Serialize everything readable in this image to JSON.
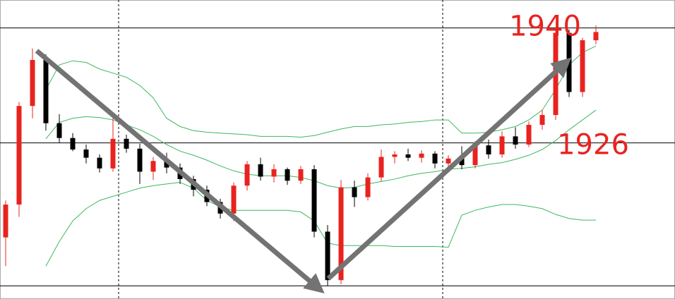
{
  "chart_data": {
    "type": "candlestick",
    "ylim": [
      1907,
      1943.4
    ],
    "up_color": "#e8231f",
    "down_color": "#000000",
    "band_color": "#3cb860",
    "open": [
      1914.5,
      1918.5,
      1930.5,
      1936.1,
      1928.4,
      1926.6,
      1925.2,
      1924.2,
      1922.9,
      1926.5,
      1925.3,
      1922.5,
      1923.8,
      1923,
      1921.6,
      1920.3,
      1918.8,
      1917.4,
      1920.8,
      1923.4,
      1921.9,
      1922.8,
      1921.4,
      1922.8,
      1915.2,
      1909.3,
      1920.6,
      1919.4,
      1921.8,
      1924.3,
      1924.6,
      1924.2,
      1924.7,
      1923.5,
      1924.1,
      1923.3,
      1925.7,
      1924.6,
      1926.8,
      1925.8,
      1928.2,
      1929.4,
      1939.4,
      1932.2,
      1938.5
    ],
    "high": [
      1919,
      1931,
      1937.5,
      1936.8,
      1929.5,
      1927.2,
      1925.8,
      1924.6,
      1929,
      1927,
      1925.9,
      1924.3,
      1924.8,
      1923.5,
      1922,
      1920.8,
      1919.2,
      1921.2,
      1923.8,
      1924.2,
      1923.4,
      1923,
      1923.2,
      1923.3,
      1916,
      1921.5,
      1921.4,
      1922.3,
      1925.2,
      1925,
      1925.3,
      1925.1,
      1925,
      1924.5,
      1925.6,
      1926.2,
      1926.4,
      1927.4,
      1927.9,
      1928.6,
      1930,
      1939.8,
      1939.8,
      1938.8,
      1940.3
    ],
    "low": [
      1911,
      1917,
      1929,
      1927.5,
      1926,
      1925,
      1923.5,
      1922.4,
      1922.5,
      1924.8,
      1921,
      1921.5,
      1922.3,
      1921,
      1919.5,
      1918.3,
      1916.8,
      1916.5,
      1920.2,
      1921.4,
      1921.2,
      1920.9,
      1921,
      1914.5,
      1908.6,
      1908.8,
      1918.2,
      1919,
      1921.3,
      1923.5,
      1923.8,
      1923.6,
      1922.9,
      1922.5,
      1922.8,
      1922.9,
      1924.1,
      1924.2,
      1925.3,
      1925.5,
      1927.6,
      1928.8,
      1931.6,
      1931.6,
      1938
    ],
    "close": [
      1918.5,
      1930.5,
      1936.1,
      1928.4,
      1926.6,
      1925.2,
      1924.2,
      1922.9,
      1926.5,
      1925.3,
      1922.5,
      1923.8,
      1923,
      1921.6,
      1920.3,
      1918.8,
      1917.4,
      1920.8,
      1923.4,
      1921.9,
      1922.8,
      1921.4,
      1922.8,
      1915.2,
      1909.3,
      1920.6,
      1919.4,
      1921.8,
      1924.3,
      1924.6,
      1924.2,
      1924.7,
      1923.5,
      1924.1,
      1923.3,
      1925.7,
      1924.6,
      1926.8,
      1925.8,
      1928.2,
      1929.4,
      1939.4,
      1932.2,
      1938.5,
      1939.5
    ],
    "bands": [
      [
        null,
        null,
        null,
        1932.5,
        1935.5,
        1936,
        1935.8,
        1935,
        1934.5,
        1934,
        1933,
        1931.5,
        1929,
        1928,
        1927.5,
        1927.3,
        1927.2,
        1927.1,
        1927,
        1926.8,
        1926.8,
        1926.8,
        1926.7,
        1926.9,
        1927.3,
        1927.7,
        1928,
        1928,
        1928.2,
        1928.3,
        1928.5,
        1928.6,
        1928.8,
        1928.8,
        1927.2,
        1927.2,
        1927.3,
        1927.6,
        1928,
        1928.8,
        1930,
        1932.5,
        1935.5,
        1937,
        1937.8
      ],
      [
        null,
        null,
        null,
        1926.5,
        1928.5,
        1929,
        1929.2,
        1929.1,
        1928.8,
        1928.2,
        1927.6,
        1926.8,
        1925.8,
        1925,
        1924.5,
        1923.9,
        1923.2,
        1922.6,
        1922.2,
        1922,
        1922,
        1922,
        1921.8,
        1921.4,
        1920.8,
        1920.5,
        1920.6,
        1921,
        1921.3,
        1921.6,
        1922,
        1922.3,
        1922.5,
        1922.8,
        1922.9,
        1923.1,
        1923.4,
        1923.6,
        1924,
        1924.5,
        1925.2,
        1926.3,
        1927.6,
        1928.8,
        1930
      ],
      [
        null,
        null,
        null,
        1911,
        1914,
        1916.5,
        1918,
        1919,
        1919.5,
        1920,
        1920.5,
        1920.8,
        1921,
        1921.2,
        1920.5,
        1919,
        1918.2,
        1917.8,
        1917.8,
        1917.8,
        1917.8,
        1917.8,
        1917.6,
        1916.5,
        1913.8,
        1913.5,
        1913.5,
        1913.5,
        1913.5,
        1913.4,
        1913.4,
        1913.4,
        1913.4,
        1913.3,
        1917.2,
        1917.8,
        1918.2,
        1918.5,
        1918.5,
        1918.3,
        1918,
        1917.3,
        1916.8,
        1916.6,
        1916.6
      ]
    ],
    "levels": [
      1940,
      1926,
      1908.6
    ],
    "annotations": [
      {
        "text": "1940",
        "value": 1940
      },
      {
        "text": "1926",
        "value": 1926
      }
    ]
  }
}
